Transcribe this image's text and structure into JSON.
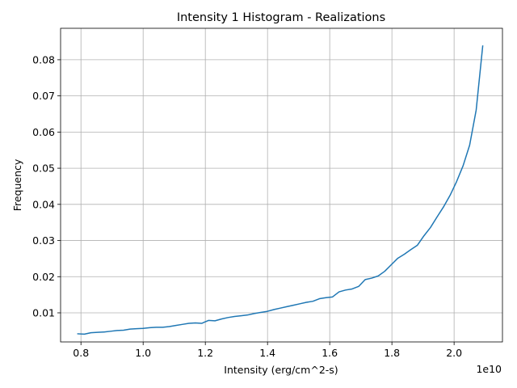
{
  "chart_data": {
    "type": "line",
    "title": "Intensity 1 Histogram - Realizations",
    "xlabel": "Intensity (erg/cm^2-s)",
    "ylabel": "Frequency",
    "x_offset_label": "1e10",
    "xlim": [
      0.7345,
      2.1555
    ],
    "ylim": [
      0.00195,
      0.0887
    ],
    "grid": true,
    "x_ticks": [
      0.8,
      1.0,
      1.2,
      1.4,
      1.6,
      1.8,
      2.0
    ],
    "x_tick_labels": [
      "0.8",
      "1.0",
      "1.2",
      "1.4",
      "1.6",
      "1.8",
      "2.0"
    ],
    "y_ticks": [
      0.01,
      0.02,
      0.03,
      0.04,
      0.05,
      0.06,
      0.07,
      0.08
    ],
    "y_tick_labels": [
      "0.01",
      "0.02",
      "0.03",
      "0.04",
      "0.05",
      "0.06",
      "0.07",
      "0.08"
    ],
    "series": [
      {
        "color": "#1f77b4",
        "x": [
          0.79,
          0.811,
          0.832,
          0.853,
          0.874,
          0.895,
          0.916,
          0.937,
          0.958,
          0.979,
          1.0,
          1.021,
          1.042,
          1.063,
          1.084,
          1.105,
          1.126,
          1.147,
          1.168,
          1.189,
          1.21,
          1.231,
          1.252,
          1.273,
          1.294,
          1.315,
          1.336,
          1.357,
          1.378,
          1.399,
          1.42,
          1.441,
          1.462,
          1.483,
          1.504,
          1.525,
          1.546,
          1.567,
          1.588,
          1.609,
          1.63,
          1.651,
          1.672,
          1.693,
          1.714,
          1.735,
          1.756,
          1.777,
          1.798,
          1.819,
          1.84,
          1.861,
          1.882,
          1.903,
          1.924,
          1.945,
          1.966,
          1.987,
          2.008,
          2.029,
          2.05,
          2.071,
          2.092
        ],
        "y": [
          0.0042,
          0.0041,
          0.0045,
          0.0046,
          0.0047,
          0.0049,
          0.0051,
          0.0052,
          0.0055,
          0.0056,
          0.0057,
          0.0059,
          0.006,
          0.006,
          0.0062,
          0.0065,
          0.0068,
          0.0071,
          0.0072,
          0.0071,
          0.0079,
          0.0078,
          0.0083,
          0.0087,
          0.009,
          0.0092,
          0.0094,
          0.0098,
          0.0101,
          0.0104,
          0.0109,
          0.0113,
          0.0117,
          0.0121,
          0.0125,
          0.0129,
          0.0132,
          0.0139,
          0.0142,
          0.0144,
          0.0158,
          0.0163,
          0.0166,
          0.0173,
          0.0192,
          0.0196,
          0.0202,
          0.0215,
          0.0233,
          0.0251,
          0.0262,
          0.0275,
          0.0287,
          0.0313,
          0.0336,
          0.0365,
          0.0393,
          0.0425,
          0.0463,
          0.0507,
          0.0564,
          0.0661,
          0.0838
        ]
      }
    ]
  }
}
